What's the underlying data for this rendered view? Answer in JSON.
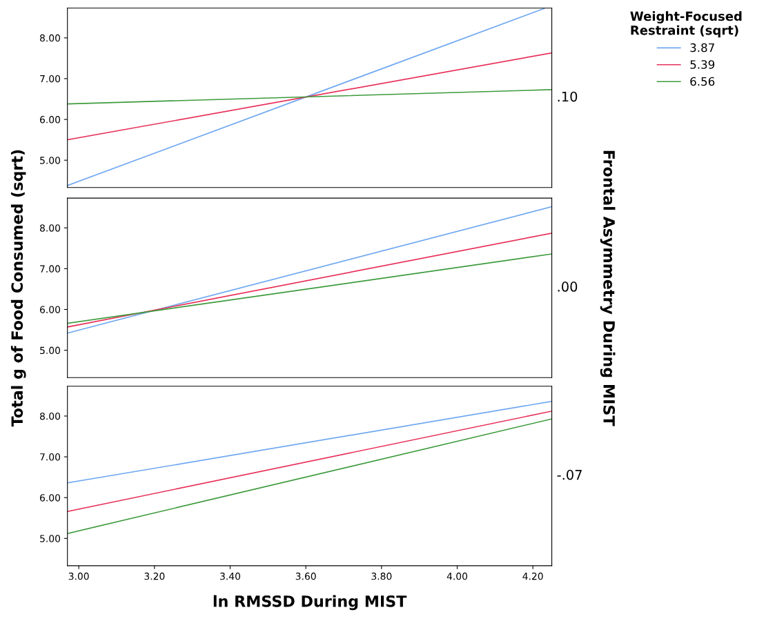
{
  "chart_data": [
    {
      "type": "line",
      "legend": "right",
      "legend_title": "Weight-Focused\nRestraint (sqrt)",
      "annotations": [
        ".10"
      ],
      "tick_labels": "y",
      "xlim": [
        2.97,
        4.25
      ],
      "ylim": [
        4.33,
        8.73
      ],
      "yticks": [
        {
          "value": 5,
          "label": "5.00"
        },
        {
          "value": 6,
          "label": "6.00"
        },
        {
          "value": 7,
          "label": "7.00"
        },
        {
          "value": 8,
          "label": "8.00"
        }
      ],
      "series": [
        {
          "name": "3.87",
          "color": "#6fa8f0",
          "x": [
            2.97,
            4.23
          ],
          "values": [
            4.38,
            8.72
          ]
        },
        {
          "name": "5.39",
          "color": "#e8325a",
          "x": [
            2.97,
            4.25
          ],
          "values": [
            5.5,
            7.63
          ]
        },
        {
          "name": "6.56",
          "color": "#3c9a3c",
          "x": [
            2.97,
            4.25
          ],
          "values": [
            6.38,
            6.73
          ]
        }
      ]
    },
    {
      "type": "line",
      "annotations": [
        ".00"
      ],
      "tick_labels": "y",
      "ylabel": "Total g of Food Consumed (sqrt)",
      "y2label": "Frontal Asymmetry During MIST",
      "xlim": [
        2.97,
        4.25
      ],
      "ylim": [
        4.33,
        8.73
      ],
      "yticks": [
        {
          "value": 5,
          "label": "5.00"
        },
        {
          "value": 6,
          "label": "6.00"
        },
        {
          "value": 7,
          "label": "7.00"
        },
        {
          "value": 8,
          "label": "8.00"
        }
      ],
      "series": [
        {
          "color": "#6fa8f0",
          "x": [
            2.97,
            4.25
          ],
          "values": [
            5.42,
            8.52
          ]
        },
        {
          "color": "#e8325a",
          "x": [
            2.97,
            4.25
          ],
          "values": [
            5.57,
            7.87
          ]
        },
        {
          "color": "#3c9a3c",
          "x": [
            2.97,
            4.25
          ],
          "values": [
            5.66,
            7.36
          ]
        }
      ]
    },
    {
      "type": "line",
      "annotations": [
        "-.07"
      ],
      "xlabel": "ln RMSSD During MIST",
      "xlim": [
        2.97,
        4.25
      ],
      "ylim": [
        4.33,
        8.73
      ],
      "xticks": [
        {
          "value": 3.0,
          "label": "3.00"
        },
        {
          "value": 3.2,
          "label": "3.20"
        },
        {
          "value": 3.4,
          "label": "3.40"
        },
        {
          "value": 3.6,
          "label": "3.60"
        },
        {
          "value": 3.8,
          "label": "3.80"
        },
        {
          "value": 4.0,
          "label": "4.00"
        },
        {
          "value": 4.2,
          "label": "4.20"
        }
      ],
      "yticks": [
        {
          "value": 5,
          "label": "5.00"
        },
        {
          "value": 6,
          "label": "6.00"
        },
        {
          "value": 7,
          "label": "7.00"
        },
        {
          "value": 8,
          "label": "8.00"
        }
      ],
      "series": [
        {
          "color": "#6fa8f0",
          "x": [
            2.97,
            4.25
          ],
          "values": [
            6.36,
            8.36
          ]
        },
        {
          "color": "#e8325a",
          "x": [
            2.97,
            4.25
          ],
          "values": [
            5.66,
            8.12
          ]
        },
        {
          "color": "#3c9a3c",
          "x": [
            2.97,
            4.25
          ],
          "values": [
            5.12,
            7.93
          ]
        }
      ]
    }
  ]
}
